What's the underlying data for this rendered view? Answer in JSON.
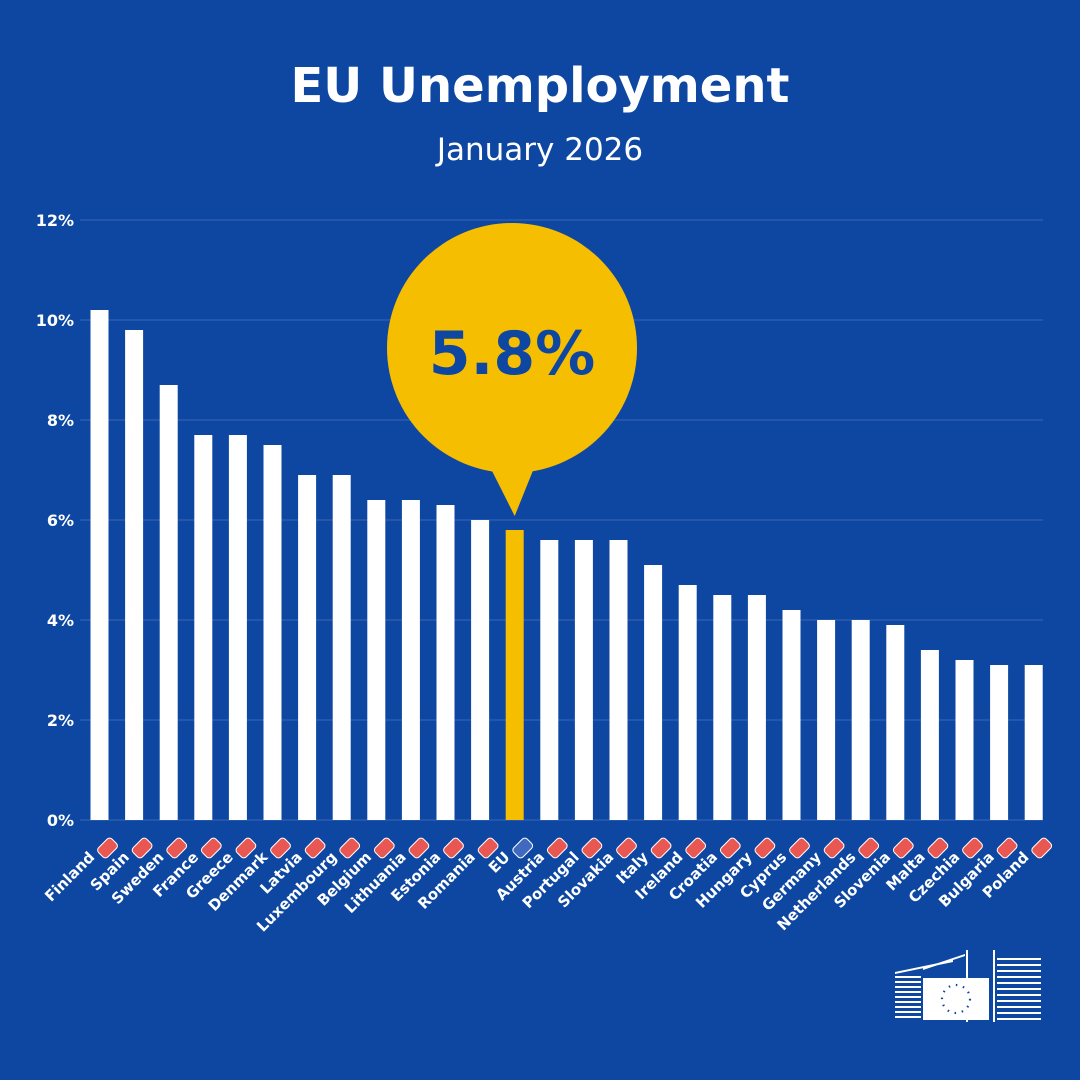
{
  "colors": {
    "background": "#0d47a1",
    "bar": "#ffffff",
    "highlight": "#f6be00",
    "highlight_text": "#0d47a1",
    "grid": "#3a66b5"
  },
  "chart_data": {
    "type": "bar",
    "title": "EU Unemployment",
    "subtitle": "January 2026",
    "xlabel": "",
    "ylabel": "",
    "ylim": [
      0,
      12
    ],
    "y_ticks": [
      0,
      2,
      4,
      6,
      8,
      10,
      12
    ],
    "y_tick_labels": [
      "0%",
      "2%",
      "4%",
      "6%",
      "8%",
      "10%",
      "12%"
    ],
    "grid": true,
    "categories": [
      "Finland",
      "Spain",
      "Sweden",
      "France",
      "Greece",
      "Denmark",
      "Latvia",
      "Luxembourg",
      "Belgium",
      "Lithuania",
      "Estonia",
      "Romania",
      "EU",
      "Austria",
      "Portugal",
      "Slovakia",
      "Italy",
      "Ireland",
      "Croatia",
      "Hungary",
      "Cyprus",
      "Germany",
      "Netherlands",
      "Slovenia",
      "Malta",
      "Czechia",
      "Bulgaria",
      "Poland"
    ],
    "values": [
      10.2,
      9.8,
      8.7,
      7.7,
      7.7,
      7.5,
      6.9,
      6.9,
      6.4,
      6.4,
      6.3,
      6.0,
      5.8,
      5.6,
      5.6,
      5.6,
      5.1,
      4.7,
      4.5,
      4.5,
      4.2,
      4.0,
      4.0,
      3.9,
      3.4,
      3.2,
      3.1,
      3.1
    ],
    "highlight": "EU",
    "annotation": "5.8%",
    "flag_icons": [
      "finland-flag-icon",
      "spain-flag-icon",
      "sweden-flag-icon",
      "france-flag-icon",
      "greece-flag-icon",
      "denmark-flag-icon",
      "latvia-flag-icon",
      "luxembourg-flag-icon",
      "belgium-flag-icon",
      "lithuania-flag-icon",
      "estonia-flag-icon",
      "romania-flag-icon",
      "eu-flag-icon",
      "austria-flag-icon",
      "portugal-flag-icon",
      "slovakia-flag-icon",
      "italy-flag-icon",
      "ireland-flag-icon",
      "croatia-flag-icon",
      "hungary-flag-icon",
      "cyprus-flag-icon",
      "germany-flag-icon",
      "netherlands-flag-icon",
      "slovenia-flag-icon",
      "malta-flag-icon",
      "czechia-flag-icon",
      "bulgaria-flag-icon",
      "poland-flag-icon"
    ]
  }
}
